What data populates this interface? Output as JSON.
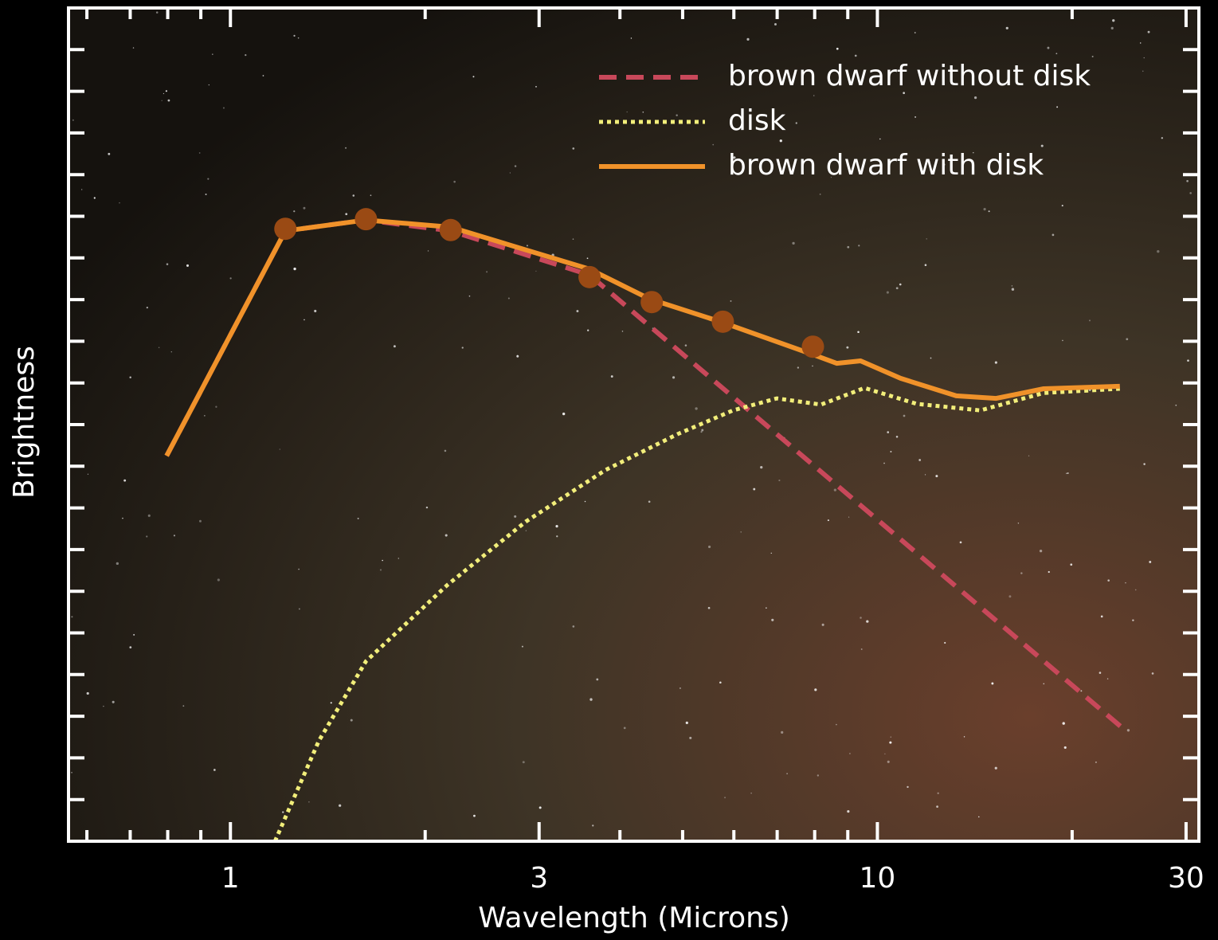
{
  "chart_data": {
    "type": "line",
    "xlabel": "Wavelength (Microns)",
    "ylabel": "Brightness",
    "xlog": true,
    "xlim": [
      0.562,
      31.4
    ],
    "ylim": [
      0,
      20
    ],
    "xticks": [
      1,
      3,
      10,
      30
    ],
    "xminorticks": [
      0.6,
      0.7,
      0.8,
      0.9,
      2,
      4,
      5,
      6,
      7,
      8,
      9,
      20
    ],
    "yticks": [
      0,
      1,
      2,
      3,
      4,
      5,
      6,
      7,
      8,
      9,
      10,
      11,
      12,
      13,
      14,
      15,
      16,
      17,
      18,
      19,
      20
    ],
    "legend": "upper right",
    "series": [
      {
        "name": "brown dwarf without disk",
        "color": "#c8485a",
        "style": "dashed",
        "x": [
          0.797,
          1.216,
          1.62,
          2.19,
          3.59,
          24.0
        ],
        "values": [
          9.25,
          14.65,
          14.91,
          14.65,
          13.59,
          2.7
        ]
      },
      {
        "name": "disk",
        "color": "#f2ee7a",
        "style": "dotted",
        "x": [
          1.172,
          1.37,
          1.62,
          2.16,
          2.86,
          3.8,
          4.91,
          5.98,
          6.99,
          8.18,
          9.55,
          11.49,
          14.42,
          18.07,
          23.7
        ],
        "values": [
          0,
          2.41,
          4.32,
          6.14,
          7.67,
          8.91,
          9.77,
          10.34,
          10.63,
          10.48,
          10.88,
          10.5,
          10.34,
          10.76,
          10.86
        ]
      },
      {
        "name": "brown dwarf with disk",
        "color": "#f0922a",
        "style": "solid",
        "x": [
          0.797,
          1.216,
          1.62,
          2.19,
          3.59,
          4.44,
          5.77,
          7.95,
          8.65,
          9.42,
          10.86,
          13.24,
          15.26,
          18.07,
          23.7
        ],
        "values": [
          9.25,
          14.65,
          14.91,
          14.74,
          13.73,
          13.02,
          12.45,
          11.68,
          11.47,
          11.53,
          11.11,
          10.69,
          10.63,
          10.86,
          10.92
        ]
      }
    ],
    "points": {
      "color": "#9a4a14",
      "x": [
        1.216,
        1.62,
        2.19,
        3.59,
        4.48,
        5.77,
        7.95
      ],
      "values": [
        14.7,
        14.93,
        14.67,
        13.54,
        12.94,
        12.47,
        11.87
      ]
    }
  }
}
